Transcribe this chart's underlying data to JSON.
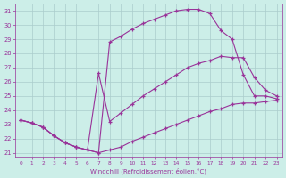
{
  "xlabel": "Windchill (Refroidissement éolien,°C)",
  "bg_color": "#cceee8",
  "line_color": "#993399",
  "grid_color": "#aacccc",
  "xlim": [
    -0.5,
    23.5
  ],
  "ylim": [
    20.7,
    31.5
  ],
  "yticks": [
    21,
    22,
    23,
    24,
    25,
    26,
    27,
    28,
    29,
    30,
    31
  ],
  "xticks": [
    0,
    1,
    2,
    3,
    4,
    5,
    6,
    7,
    8,
    9,
    10,
    11,
    12,
    13,
    14,
    15,
    16,
    17,
    18,
    19,
    20,
    21,
    22,
    23
  ],
  "line1_x": [
    0,
    1,
    2,
    3,
    4,
    5,
    6,
    7,
    8,
    9,
    10,
    11,
    12,
    13,
    14,
    15,
    16,
    17,
    18,
    19,
    20,
    21,
    22,
    23
  ],
  "line1_y": [
    23.3,
    23.1,
    22.8,
    22.2,
    21.7,
    21.4,
    21.2,
    21.0,
    28.8,
    29.2,
    29.7,
    30.1,
    30.4,
    30.7,
    31.0,
    31.1,
    31.1,
    30.8,
    29.6,
    29.0,
    26.5,
    25.0,
    25.0,
    24.8
  ],
  "line2_x": [
    0,
    1,
    2,
    3,
    4,
    5,
    6,
    7,
    8,
    9,
    10,
    11,
    12,
    13,
    14,
    15,
    16,
    17,
    18,
    19,
    20,
    21,
    22,
    23
  ],
  "line2_y": [
    23.3,
    23.1,
    22.8,
    22.2,
    21.7,
    21.4,
    21.2,
    26.6,
    23.2,
    23.8,
    24.4,
    25.0,
    25.5,
    26.0,
    26.5,
    27.0,
    27.3,
    27.5,
    27.8,
    27.7,
    27.7,
    26.3,
    25.4,
    25.0
  ],
  "line3_x": [
    0,
    1,
    2,
    3,
    4,
    5,
    6,
    7,
    8,
    9,
    10,
    11,
    12,
    13,
    14,
    15,
    16,
    17,
    18,
    19,
    20,
    21,
    22,
    23
  ],
  "line3_y": [
    23.3,
    23.1,
    22.8,
    22.2,
    21.7,
    21.4,
    21.2,
    21.0,
    21.2,
    21.4,
    21.8,
    22.1,
    22.4,
    22.7,
    23.0,
    23.3,
    23.6,
    23.9,
    24.1,
    24.4,
    24.5,
    24.5,
    24.6,
    24.7
  ]
}
